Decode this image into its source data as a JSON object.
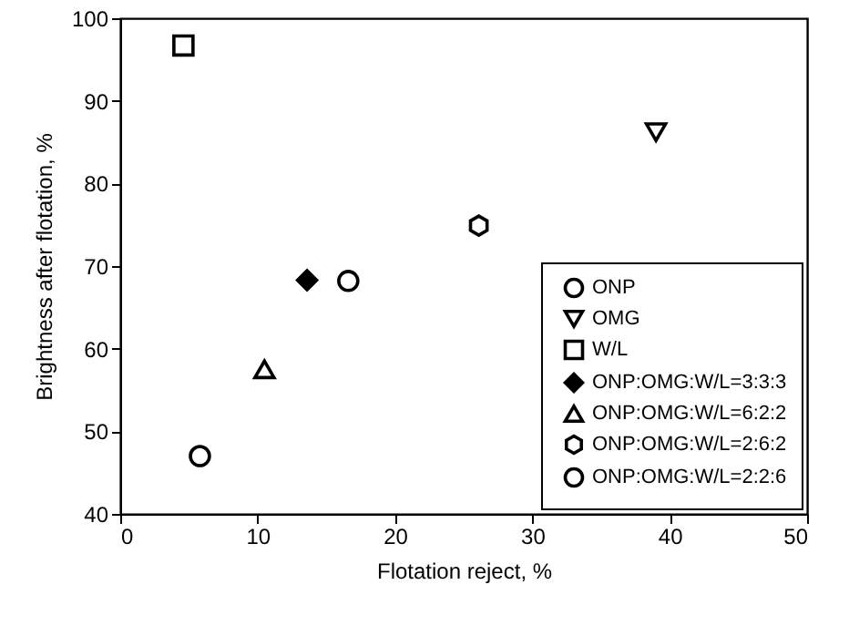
{
  "chart_data": {
    "type": "scatter",
    "xlabel": "Flotation reject, %",
    "ylabel": "Brightness after flotation, %",
    "xlim": [
      0,
      50
    ],
    "xticks": [
      0,
      10,
      20,
      30,
      40,
      50
    ],
    "ylim": [
      40,
      100
    ],
    "yticks": [
      40,
      50,
      60,
      70,
      80,
      90,
      100
    ],
    "grid": false,
    "legend": "bottom right",
    "series": [
      {
        "name": "ONP",
        "color": "#000000",
        "marker": "circle",
        "x": [
          5.8
        ],
        "values": [
          47.0
        ]
      },
      {
        "name": "OMG",
        "color": "#000000",
        "marker": "triangle-down",
        "x": [
          39.0
        ],
        "values": [
          86.2
        ]
      },
      {
        "name": "W/L",
        "color": "#000000",
        "marker": "square",
        "x": [
          4.6
        ],
        "values": [
          96.7
        ]
      },
      {
        "name": "ONP:OMG:W/L=3:3:3",
        "color": "#000000",
        "marker": "diamond",
        "x": [
          13.6
        ],
        "values": [
          68.3
        ]
      },
      {
        "name": "ONP:OMG:W/L=6:2:2",
        "color": "#000000",
        "marker": "triangle",
        "x": [
          10.5
        ],
        "values": [
          57.5
        ]
      },
      {
        "name": "ONP:OMG:W/L=2:6:2",
        "color": "#000000",
        "x": [
          26.1
        ],
        "values": [
          74.9
        ]
      },
      {
        "name": "ONP:OMG:W/L=2:2:6",
        "color": "#000000",
        "marker": "circle",
        "x": [
          16.6
        ],
        "values": [
          68.2
        ]
      }
    ]
  }
}
